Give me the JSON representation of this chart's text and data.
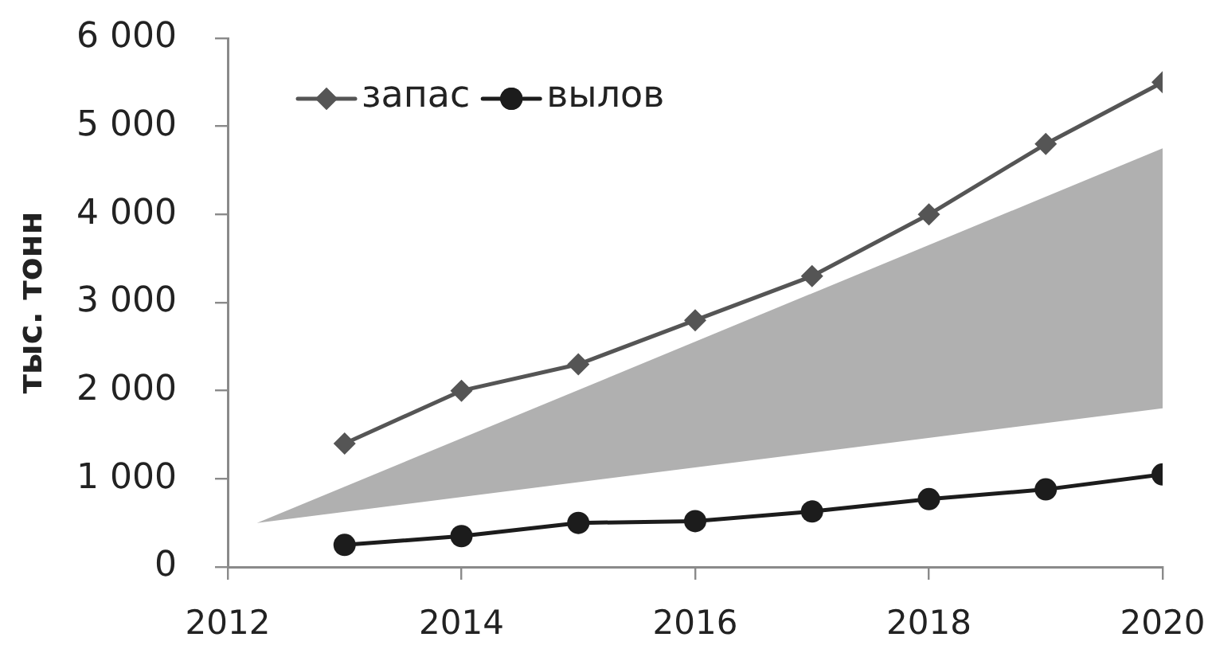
{
  "chart_data": {
    "type": "line",
    "ylabel": "тыс. тонн",
    "x": [
      2013,
      2014,
      2015,
      2016,
      2017,
      2018,
      2019,
      2020
    ],
    "xlim": [
      2012,
      2020
    ],
    "xticks": [
      2012,
      2014,
      2016,
      2018,
      2020
    ],
    "ylim": [
      0,
      6000
    ],
    "yticks": [
      0,
      {
        "value": 1000,
        "label": "1 000"
      },
      {
        "value": 2000,
        "label": "2 000"
      },
      {
        "value": 3000,
        "label": "3 000"
      },
      {
        "value": 4000,
        "label": "4 000"
      },
      {
        "value": 5000,
        "label": "5 000"
      },
      {
        "value": 6000,
        "label": "6 000"
      }
    ],
    "legend": "top left",
    "line_style": "solid",
    "series": [
      {
        "name": "запас",
        "color": "#555555",
        "marker": "diamond",
        "values": [
          1400,
          2000,
          2300,
          2800,
          3300,
          4000,
          4800,
          5500
        ]
      },
      {
        "name": "вылов",
        "color": "#1c1c1c",
        "marker": "circle",
        "values": [
          250,
          350,
          500,
          520,
          630,
          770,
          880,
          1050
        ]
      },
      {
        "type": "area",
        "color": "#b0b0b0",
        "x": [
          2012.25,
          2020
        ],
        "values": [
          null,
          null
        ],
        "lower": [
          500,
          1800
        ],
        "upper": [
          500,
          4750
        ]
      }
    ]
  }
}
